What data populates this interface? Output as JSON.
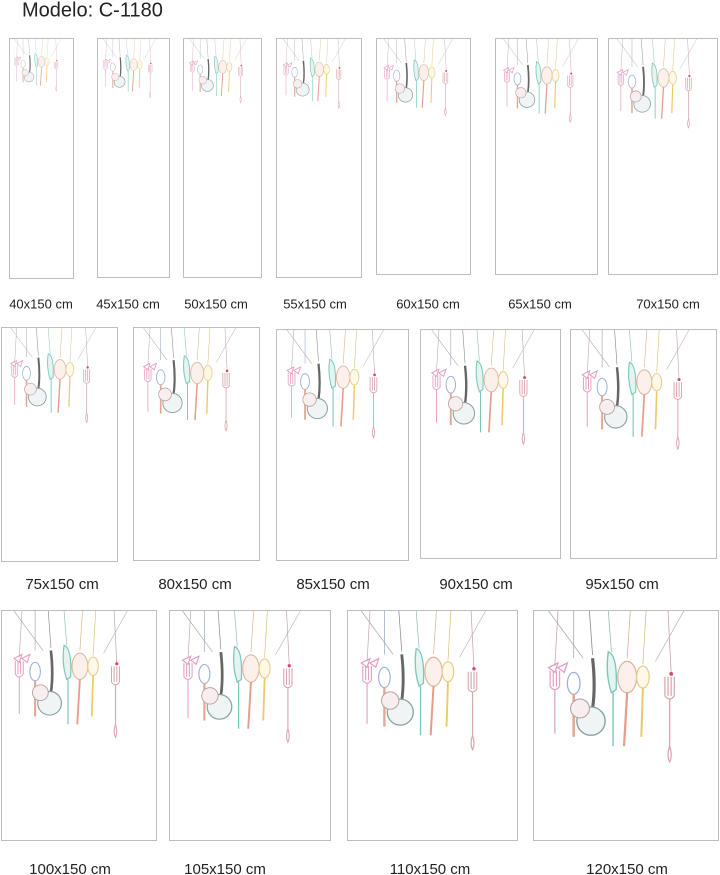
{
  "title": "Modelo: C-1180",
  "rows": [
    [
      "40x150 cm",
      "45x150 cm",
      "50x150 cm",
      "55x150 cm",
      "60x150 cm",
      "65x150 cm",
      "70x150 cm"
    ],
    [
      "75x150 cm",
      "80x150 cm",
      "85x150 cm",
      "90x150 cm",
      "95x150 cm"
    ],
    [
      "100x150 cm",
      "105x150 cm",
      "110x150 cm",
      "120x150 cm"
    ]
  ]
}
